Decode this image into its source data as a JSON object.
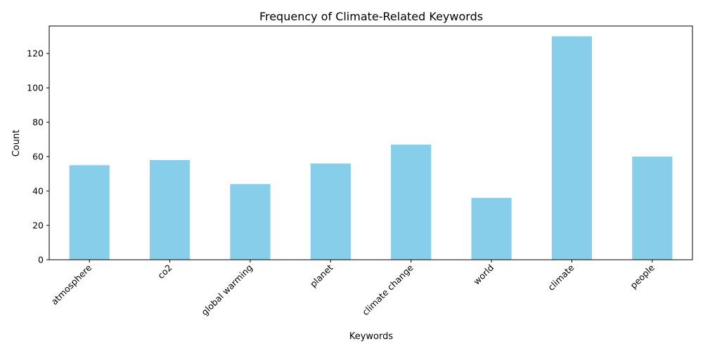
{
  "chart_data": {
    "type": "bar",
    "title": "Frequency of Climate-Related Keywords",
    "xlabel": "Keywords",
    "ylabel": "Count",
    "categories": [
      "atmosphere",
      "co2",
      "global warming",
      "planet",
      "climate change",
      "world",
      "climate",
      "people"
    ],
    "values": [
      55,
      58,
      44,
      56,
      67,
      36,
      130,
      60
    ],
    "ylim": [
      0,
      136
    ],
    "yticks": [
      0,
      20,
      40,
      60,
      80,
      100,
      120
    ],
    "bar_color": "#87ceeb",
    "grid": false,
    "legend": "none"
  }
}
